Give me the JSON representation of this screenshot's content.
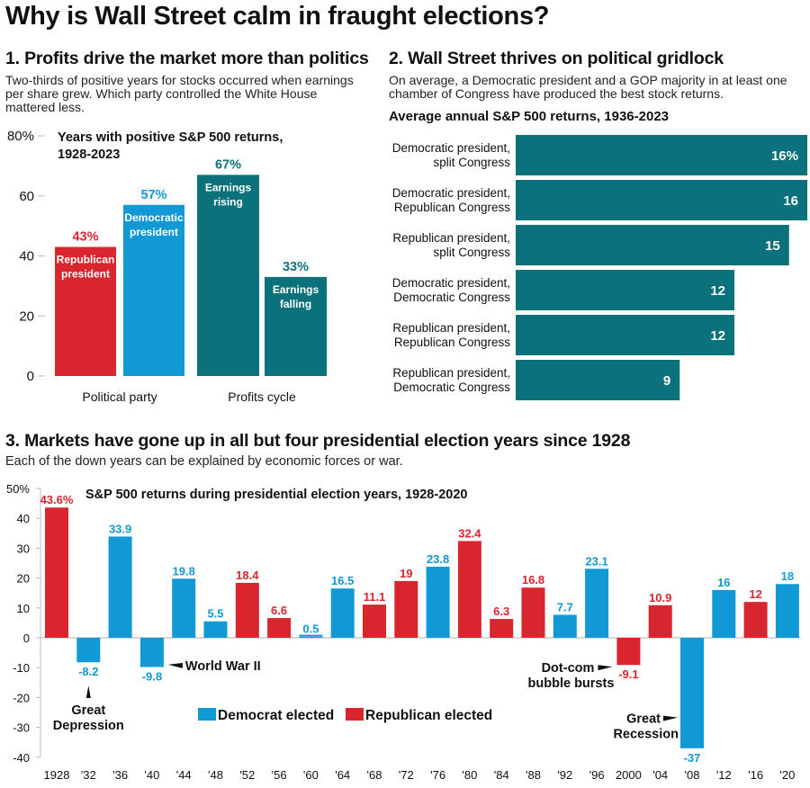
{
  "title": "Why is Wall Street calm in fraught elections?",
  "colors": {
    "republican": "#d9252e",
    "democrat": "#1199d6",
    "teal": "#0b727c",
    "axis": "#bbbbbb"
  },
  "section1": {
    "heading": "1. Profits drive the market more than politics",
    "description": "Two-thirds of positive years for stocks occurred when earnings per share grew. Which party controlled the White House mattered less."
  },
  "section2": {
    "heading": "2. Wall Street thrives on political gridlock",
    "description": "On average, a Democratic president and a GOP majority in at least one chamber of Congress have produced the best stock returns."
  },
  "section3": {
    "heading": "3. Markets have gone up in all but four presidential election years since 1928",
    "description": "Each of the down years can be explained by economic forces or war."
  },
  "chart_data": [
    {
      "type": "bar",
      "title": "Years with positive S&P 500 returns, 1928-2023",
      "ylabel": "",
      "ylim": [
        0,
        80
      ],
      "yticks": [
        0,
        20,
        40,
        60,
        80
      ],
      "ytick_labels": [
        "0",
        "20",
        "40",
        "60",
        "80%"
      ],
      "groups": [
        {
          "label": "Political party",
          "bars": [
            {
              "name": "Republican president",
              "value": 43,
              "value_label": "43%",
              "color_key": "republican",
              "label_color": "#d9252e"
            },
            {
              "name": "Democratic president",
              "value": 57,
              "value_label": "57%",
              "color_key": "democrat",
              "label_color": "#1199d6"
            }
          ]
        },
        {
          "label": "Profits cycle",
          "bars": [
            {
              "name": "Earnings rising",
              "value": 67,
              "value_label": "67%",
              "color_key": "teal",
              "label_color": "#0b727c"
            },
            {
              "name": "Earnings falling",
              "value": 33,
              "value_label": "33%",
              "color_key": "teal",
              "label_color": "#0b727c"
            }
          ]
        }
      ]
    },
    {
      "type": "bar",
      "orientation": "horizontal",
      "title": "Average annual S&P 500 returns, 1936-2023",
      "xlim": [
        0,
        16
      ],
      "categories": [
        "Democratic president, split Congress",
        "Democratic president, Republican Congress",
        "Republican president, split Congress",
        "Democratic president, Democratic Congress",
        "Republican president, Republican Congress",
        "Republican president, Democratic Congress"
      ],
      "category_lines": [
        [
          "Democratic president,",
          "split Congress"
        ],
        [
          "Democratic president,",
          "Republican Congress"
        ],
        [
          "Republican president,",
          "split Congress"
        ],
        [
          "Democratic president,",
          "Democratic Congress"
        ],
        [
          "Republican president,",
          "Republican Congress"
        ],
        [
          "Republican president,",
          "Democratic Congress"
        ]
      ],
      "values": [
        16,
        16,
        15,
        12,
        12,
        9
      ],
      "value_labels": [
        "16%",
        "16",
        "15",
        "12",
        "12",
        "9"
      ]
    },
    {
      "type": "bar",
      "title": "S&P 500 returns during presidential election years, 1928-2020",
      "ylim": [
        -40,
        50
      ],
      "yticks": [
        -40,
        -30,
        -20,
        -10,
        0,
        10,
        20,
        30,
        40,
        50
      ],
      "ytick_labels": [
        "-40",
        "-30",
        "-20",
        "-10",
        "0",
        "10",
        "20",
        "30",
        "40",
        "50%"
      ],
      "categories": [
        "1928",
        "'32",
        "'36",
        "'40",
        "'44",
        "'48",
        "'52",
        "'56",
        "'60",
        "'64",
        "'68",
        "'72",
        "'76",
        "'80",
        "'84",
        "'88",
        "'92",
        "'96",
        "2000",
        "'04",
        "'08",
        "'12",
        "'16",
        "'20"
      ],
      "values": [
        43.6,
        -8.2,
        33.9,
        -9.8,
        19.8,
        5.5,
        18.4,
        6.6,
        0.5,
        16.5,
        11.1,
        19,
        23.8,
        32.4,
        6.3,
        16.8,
        7.7,
        23.1,
        -9.1,
        10.9,
        -37,
        16,
        12,
        18
      ],
      "value_labels": [
        "43.6%",
        "-8.2",
        "33.9",
        "-9.8",
        "19.8",
        "5.5",
        "18.4",
        "6.6",
        "0.5",
        "16.5",
        "11.1",
        "19",
        "23.8",
        "32.4",
        "6.3",
        "16.8",
        "7.7",
        "23.1",
        "-9.1",
        "10.9",
        "-37",
        "16",
        "12",
        "18"
      ],
      "party": [
        "R",
        "D",
        "D",
        "D",
        "D",
        "D",
        "R",
        "R",
        "D",
        "D",
        "R",
        "R",
        "D",
        "R",
        "R",
        "R",
        "D",
        "D",
        "R",
        "R",
        "D",
        "D",
        "R",
        "D"
      ],
      "legend": [
        {
          "label": "Democrat elected",
          "color_key": "democrat"
        },
        {
          "label": "Republican elected",
          "color_key": "republican"
        }
      ],
      "legend_position": "bottom-center",
      "annotations": [
        {
          "year": "'32",
          "lines": [
            "Great",
            "Depression"
          ]
        },
        {
          "year": "'40",
          "lines": [
            "World War II"
          ]
        },
        {
          "year": "2000",
          "lines": [
            "Dot-com",
            "bubble bursts"
          ]
        },
        {
          "year": "'08",
          "lines": [
            "Great",
            "Recession"
          ]
        }
      ]
    }
  ]
}
